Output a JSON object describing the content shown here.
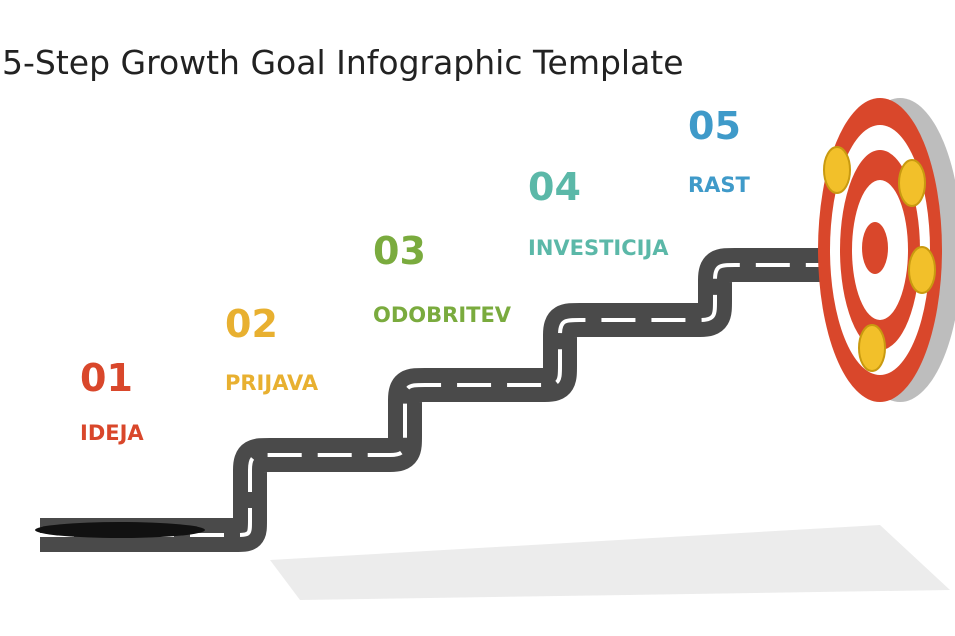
{
  "header": {
    "title": "5-Step Growth Goal Infographic Template"
  },
  "steps": [
    {
      "number": "01",
      "label": "IDEJA"
    },
    {
      "number": "02",
      "label": "PRIJAVA"
    },
    {
      "number": "03",
      "label": "ODOBRITEV"
    },
    {
      "number": "04",
      "label": "INVESTICIJA"
    },
    {
      "number": "05",
      "label": "RAST"
    }
  ]
}
